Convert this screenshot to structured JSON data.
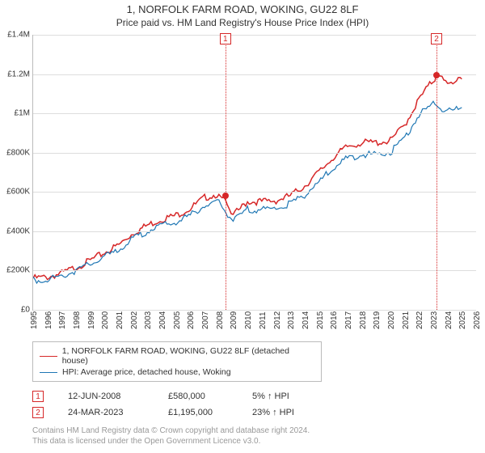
{
  "title": "1, NORFOLK FARM ROAD, WOKING, GU22 8LF",
  "subtitle": "Price paid vs. HM Land Registry's House Price Index (HPI)",
  "chart": {
    "type": "line",
    "background_color": "#ffffff",
    "grid_color": "#dddddd",
    "axis_color": "#bbbbbb",
    "label_fontsize": 10,
    "xlim": [
      1995,
      2026
    ],
    "ylim": [
      0,
      1400000
    ],
    "ytick_step": 200000,
    "yticks": [
      "£0",
      "£200K",
      "£400K",
      "£600K",
      "£800K",
      "£1M",
      "£1.2M",
      "£1.4M"
    ],
    "xticks": [
      1995,
      1996,
      1997,
      1998,
      1999,
      2000,
      2001,
      2002,
      2003,
      2004,
      2005,
      2006,
      2007,
      2008,
      2009,
      2010,
      2011,
      2012,
      2013,
      2014,
      2015,
      2016,
      2017,
      2018,
      2019,
      2020,
      2021,
      2022,
      2023,
      2024,
      2025,
      2026
    ],
    "series": [
      {
        "name": "property",
        "color": "#d62728",
        "width": 1.5,
        "data": [
          [
            1995,
            170000
          ],
          [
            1996,
            175000
          ],
          [
            1997,
            195000
          ],
          [
            1998,
            225000
          ],
          [
            1999,
            260000
          ],
          [
            2000,
            300000
          ],
          [
            2001,
            340000
          ],
          [
            2002,
            400000
          ],
          [
            2003,
            440000
          ],
          [
            2004,
            470000
          ],
          [
            2005,
            490000
          ],
          [
            2006,
            525000
          ],
          [
            2007,
            580000
          ],
          [
            2008,
            600000
          ],
          [
            2008.45,
            580000
          ],
          [
            2009,
            490000
          ],
          [
            2010,
            560000
          ],
          [
            2011,
            560000
          ],
          [
            2012,
            565000
          ],
          [
            2013,
            590000
          ],
          [
            2014,
            640000
          ],
          [
            2015,
            710000
          ],
          [
            2016,
            785000
          ],
          [
            2017,
            840000
          ],
          [
            2018,
            860000
          ],
          [
            2019,
            860000
          ],
          [
            2020,
            870000
          ],
          [
            2021,
            950000
          ],
          [
            2022,
            1080000
          ],
          [
            2023,
            1180000
          ],
          [
            2023.23,
            1195000
          ],
          [
            2024,
            1170000
          ],
          [
            2025,
            1175000
          ]
        ]
      },
      {
        "name": "hpi",
        "color": "#1f77b4",
        "width": 1.2,
        "data": [
          [
            1995,
            160000
          ],
          [
            1996,
            165000
          ],
          [
            1997,
            180000
          ],
          [
            1998,
            210000
          ],
          [
            1999,
            242000
          ],
          [
            2000,
            278000
          ],
          [
            2001,
            316000
          ],
          [
            2002,
            370000
          ],
          [
            2003,
            410000
          ],
          [
            2004,
            438000
          ],
          [
            2005,
            455000
          ],
          [
            2006,
            490000
          ],
          [
            2007,
            540000
          ],
          [
            2008,
            555000
          ],
          [
            2009,
            460000
          ],
          [
            2010,
            520000
          ],
          [
            2011,
            520000
          ],
          [
            2012,
            525000
          ],
          [
            2013,
            548000
          ],
          [
            2014,
            595000
          ],
          [
            2015,
            660000
          ],
          [
            2016,
            730000
          ],
          [
            2017,
            780000
          ],
          [
            2018,
            800000
          ],
          [
            2019,
            800000
          ],
          [
            2020,
            810000
          ],
          [
            2021,
            885000
          ],
          [
            2022,
            1000000
          ],
          [
            2023,
            1060000
          ],
          [
            2024,
            1020000
          ],
          [
            2025,
            1030000
          ]
        ]
      }
    ],
    "markers": [
      {
        "n": "1",
        "color": "#d62728",
        "year": 2008.45,
        "price": 580000
      },
      {
        "n": "2",
        "color": "#d62728",
        "year": 2023.23,
        "price": 1195000
      }
    ]
  },
  "legend": {
    "items": [
      {
        "color": "#d62728",
        "label": "1, NORFOLK FARM ROAD, WOKING, GU22 8LF (detached house)"
      },
      {
        "color": "#1f77b4",
        "label": "HPI: Average price, detached house, Woking"
      }
    ]
  },
  "annotations": [
    {
      "n": "1",
      "color": "#d62728",
      "date": "12-JUN-2008",
      "price": "£580,000",
      "pct": "5% ↑ HPI"
    },
    {
      "n": "2",
      "color": "#d62728",
      "date": "24-MAR-2023",
      "price": "£1,195,000",
      "pct": "23% ↑ HPI"
    }
  ],
  "footer": {
    "line1": "Contains HM Land Registry data © Crown copyright and database right 2024.",
    "line2": "This data is licensed under the Open Government Licence v3.0."
  }
}
